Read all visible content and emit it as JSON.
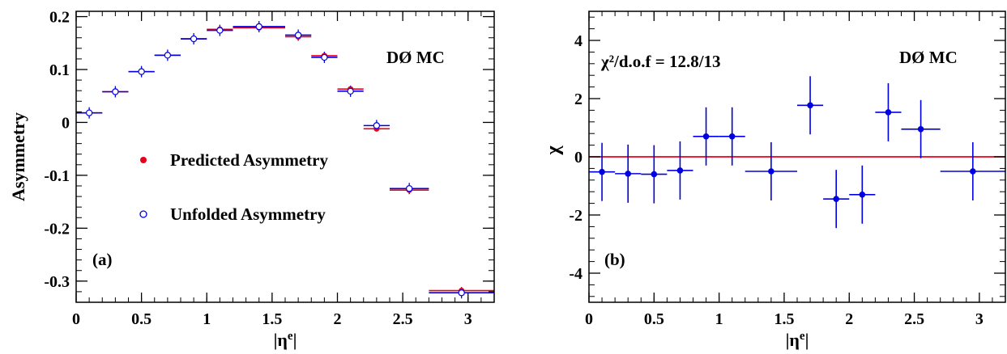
{
  "chart_data": [
    {
      "type": "scatter",
      "panel_label": "(a)",
      "annotation": "DØ MC",
      "xlabel": "|η",
      "xlabel_sup": "e",
      "xlabel_close": "|",
      "ylabel": "Asymmetry",
      "xlim": [
        0,
        3.2
      ],
      "ylim": [
        -0.34,
        0.21
      ],
      "xticks": [
        0,
        0.5,
        1,
        1.5,
        2,
        2.5,
        3
      ],
      "xtick_labels": [
        "0",
        "0.5",
        "1",
        "1.5",
        "2",
        "2.5",
        "3"
      ],
      "yticks": [
        -0.3,
        -0.2,
        -0.1,
        0,
        0.1,
        0.2
      ],
      "ytick_labels": [
        "-0.3",
        "-0.2",
        "-0.1",
        "0",
        "0.1",
        "0.2"
      ],
      "grid": false,
      "legend_position": "center-left",
      "bins": [
        [
          0,
          0.2
        ],
        [
          0.2,
          0.4
        ],
        [
          0.4,
          0.6
        ],
        [
          0.6,
          0.8
        ],
        [
          0.8,
          1.0
        ],
        [
          1.0,
          1.2
        ],
        [
          1.2,
          1.6
        ],
        [
          1.6,
          1.8
        ],
        [
          1.8,
          2.0
        ],
        [
          2.0,
          2.2
        ],
        [
          2.2,
          2.4
        ],
        [
          2.4,
          2.7
        ],
        [
          2.7,
          3.2
        ]
      ],
      "x": [
        0.1,
        0.3,
        0.5,
        0.7,
        0.9,
        1.1,
        1.4,
        1.7,
        1.9,
        2.1,
        2.3,
        2.55,
        2.95
      ],
      "series": [
        {
          "name": "Predicted Asymmetry",
          "color": "#e8001c",
          "marker": "filled-circle",
          "values": [
            0.018,
            0.058,
            0.096,
            0.127,
            0.158,
            0.176,
            0.179,
            0.162,
            0.126,
            0.063,
            -0.012,
            -0.128,
            -0.318
          ]
        },
        {
          "name": "Unfolded Asymmetry",
          "color": "#0000e0",
          "marker": "open-circle",
          "values": [
            0.018,
            0.058,
            0.096,
            0.127,
            0.158,
            0.174,
            0.181,
            0.165,
            0.123,
            0.059,
            -0.006,
            -0.125,
            -0.322
          ]
        }
      ]
    },
    {
      "type": "scatter",
      "panel_label": "(b)",
      "annotation": "DØ MC",
      "chi2_text": "χ²/d.o.f = 12.8/13",
      "xlabel": "|η",
      "xlabel_sup": "e",
      "xlabel_close": "|",
      "ylabel": "χ",
      "xlim": [
        0,
        3.2
      ],
      "ylim": [
        -5,
        5
      ],
      "xticks": [
        0,
        0.5,
        1,
        1.5,
        2,
        2.5,
        3
      ],
      "xtick_labels": [
        "0",
        "0.5",
        "1",
        "1.5",
        "2",
        "2.5",
        "3"
      ],
      "yticks": [
        -4,
        -2,
        0,
        2,
        4
      ],
      "ytick_labels": [
        "-4",
        "-2",
        "0",
        "2",
        "4"
      ],
      "grid": false,
      "reference_line": {
        "y": 0,
        "color": "#e8001c"
      },
      "bins": [
        [
          0,
          0.2
        ],
        [
          0.2,
          0.4
        ],
        [
          0.4,
          0.6
        ],
        [
          0.6,
          0.8
        ],
        [
          0.8,
          1.0
        ],
        [
          1.0,
          1.2
        ],
        [
          1.2,
          1.6
        ],
        [
          1.6,
          1.8
        ],
        [
          1.8,
          2.0
        ],
        [
          2.0,
          2.2
        ],
        [
          2.2,
          2.4
        ],
        [
          2.4,
          2.7
        ],
        [
          2.7,
          3.2
        ]
      ],
      "x": [
        0.1,
        0.3,
        0.5,
        0.7,
        0.9,
        1.1,
        1.4,
        1.7,
        1.9,
        2.1,
        2.3,
        2.55,
        2.95
      ],
      "series": [
        {
          "color": "#0000e0",
          "marker": "filled-circle",
          "values": [
            -0.52,
            -0.58,
            -0.6,
            -0.47,
            0.7,
            0.7,
            -0.5,
            1.77,
            -1.45,
            -1.3,
            1.53,
            0.95,
            -0.5
          ],
          "errors": [
            1,
            1,
            1,
            1,
            1,
            1,
            1,
            1,
            1,
            1,
            1,
            1,
            1
          ]
        }
      ]
    }
  ]
}
